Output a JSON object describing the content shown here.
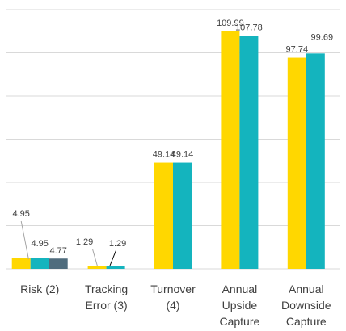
{
  "chart_data": {
    "type": "bar",
    "categories": [
      [
        "Risk (2)"
      ],
      [
        "Tracking",
        "Error (3)"
      ],
      [
        "Turnover",
        "(4)"
      ],
      [
        "Annual",
        "Upside",
        "Capture"
      ],
      [
        "Annual",
        "Downside",
        "Capture"
      ]
    ],
    "series": [
      {
        "color": "#FFD700",
        "values": [
          4.95,
          1.29,
          49.14,
          109.99,
          97.74
        ]
      },
      {
        "color": "#14B4BE",
        "values": [
          4.95,
          1.29,
          49.14,
          107.78,
          99.69
        ]
      },
      {
        "color": "#4F6C7D",
        "values": [
          4.77,
          null,
          null,
          null,
          null
        ]
      }
    ],
    "data_labels": [
      [
        "4.95",
        "1.29",
        "49.14",
        "109.99",
        "97.74"
      ],
      [
        "4.95",
        "1.29",
        "49.14",
        "107.78",
        "99.69"
      ],
      [
        "4.77",
        null,
        null,
        null,
        null
      ]
    ],
    "ylim": [
      0,
      120
    ],
    "grid": true,
    "legend": "none"
  }
}
